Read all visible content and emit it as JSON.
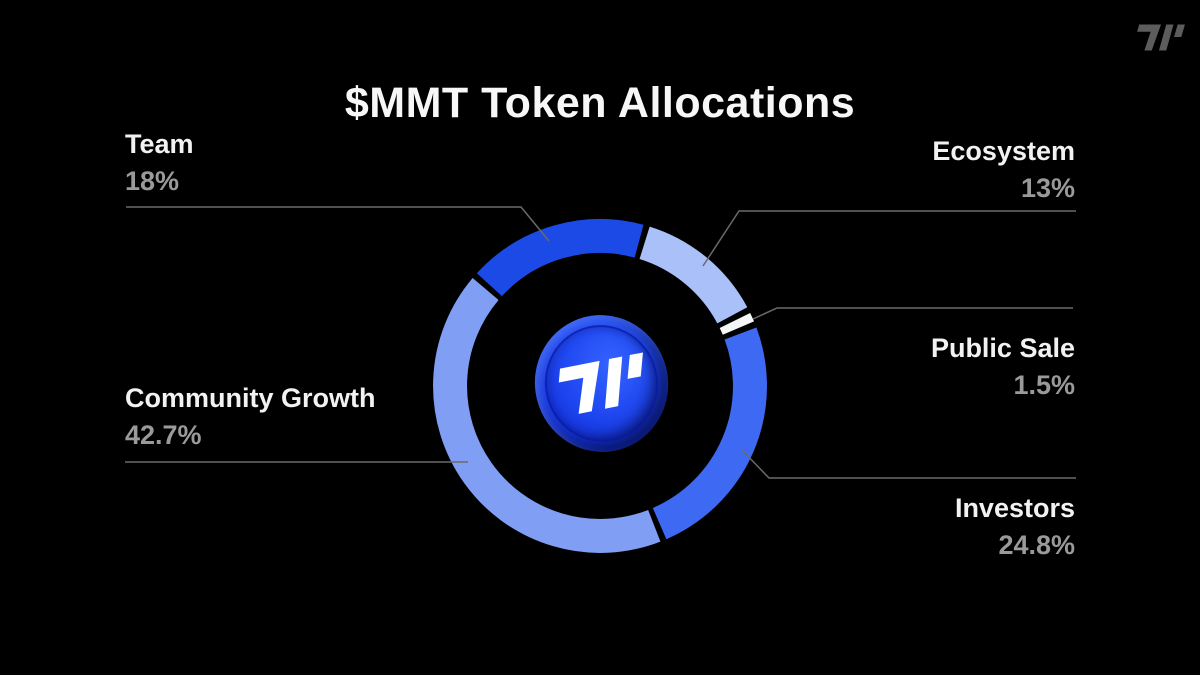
{
  "page": {
    "background": "#000000"
  },
  "header": {
    "title": "$MMT Token Allocations"
  },
  "brand": {
    "name": "momentum-mark",
    "color": "#5c5c5c"
  },
  "coin": {
    "face_color": "#1f48f2",
    "logo_color": "#ffffff"
  },
  "chart_data": {
    "type": "pie",
    "variant": "donut",
    "title": "$MMT Token Allocations",
    "start_angle_deg": -48.6,
    "direction": "clockwise",
    "gap_deg": 2.2,
    "grid": false,
    "legend_position": "callout-labels",
    "categories": [
      "Team",
      "Ecosystem",
      "Public Sale",
      "Investors",
      "Community Growth"
    ],
    "values": [
      18,
      13,
      1.5,
      24.8,
      42.7
    ],
    "segments": [
      {
        "label": "Team",
        "value": 18,
        "display": "18%",
        "color": "#1C4AE6"
      },
      {
        "label": "Ecosystem",
        "value": 13,
        "display": "13%",
        "color": "#A9C0F8"
      },
      {
        "label": "Public Sale",
        "value": 1.5,
        "display": "1.5%",
        "color": "#F5F6F7"
      },
      {
        "label": "Investors",
        "value": 24.8,
        "display": "24.8%",
        "color": "#3E69F3"
      },
      {
        "label": "Community Growth",
        "value": 42.7,
        "display": "42.7%",
        "color": "#7F9EF4"
      }
    ],
    "leader_line_color": "#6a6a6a",
    "label_color": "#f2f2f2",
    "pct_color": "#9a9a9a"
  }
}
